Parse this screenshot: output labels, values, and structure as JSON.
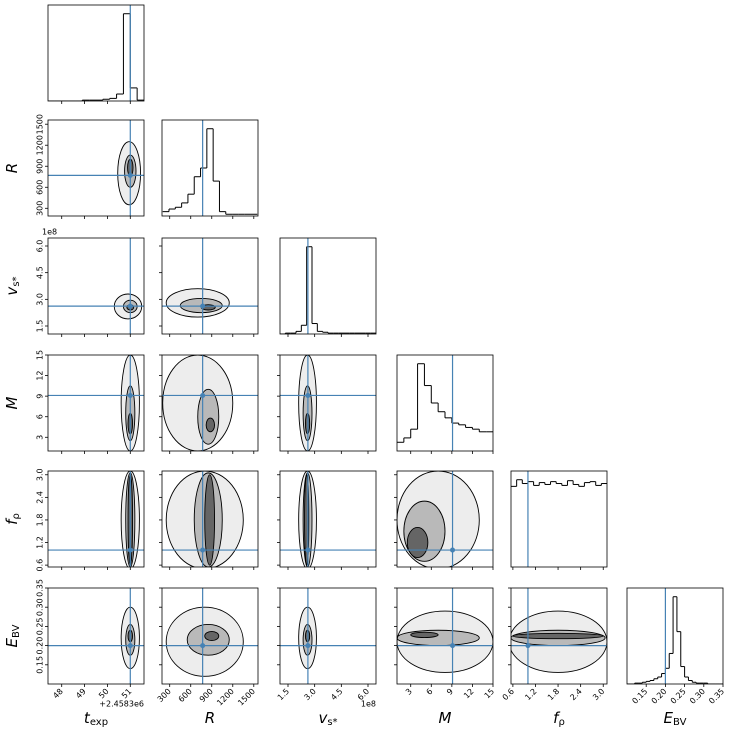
{
  "chart_data": {
    "type": "corner",
    "truth_color": "#4682b4",
    "parameters": [
      {
        "label": {
          "symbol": "t",
          "subscript": "exp"
        },
        "offset": "+2.4583e6",
        "lim": [
          47.4,
          51.6
        ],
        "ticks": [
          48,
          49,
          50,
          51
        ],
        "truth": 51.0,
        "bins": [
          47.4,
          47.7,
          48.0,
          48.3,
          48.6,
          48.9,
          49.2,
          49.5,
          49.8,
          50.1,
          50.4,
          50.7,
          51.0,
          51.3,
          51.6
        ],
        "counts": [
          0,
          0,
          0,
          0,
          0,
          1,
          1,
          1,
          2,
          3,
          8,
          100,
          15,
          1
        ]
      },
      {
        "label": {
          "symbol": "R"
        },
        "lim": [
          190,
          1560
        ],
        "ticks": [
          300,
          600,
          900,
          1200,
          1500
        ],
        "truth": 770,
        "bins": [
          200,
          290,
          380,
          470,
          560,
          650,
          740,
          830,
          920,
          1010,
          1100,
          1190,
          1280,
          1370,
          1460,
          1550
        ],
        "counts": [
          5,
          8,
          10,
          15,
          25,
          45,
          55,
          100,
          40,
          5,
          2,
          2,
          2,
          2,
          2
        ]
      },
      {
        "label": {
          "symbol": "v",
          "subscript": "s*"
        },
        "offset": "1e8",
        "lim": [
          1.05,
          6.45
        ],
        "ticks": [
          1.5,
          {
            "value": 3,
            "label": "3.0"
          },
          4.5,
          {
            "value": 6,
            "label": "6.0"
          }
        ],
        "truth": 2.62,
        "bins": [
          1.05,
          1.35,
          1.65,
          1.95,
          2.25,
          2.55,
          2.85,
          3.15,
          3.45,
          3.75,
          4.05,
          4.35,
          4.65,
          4.95,
          5.25,
          5.55,
          5.85,
          6.15,
          6.45
        ],
        "counts": [
          0,
          1,
          1,
          3,
          10,
          100,
          12,
          3,
          2,
          1,
          1,
          1,
          1,
          1,
          1,
          1,
          1,
          1
        ]
      },
      {
        "label": {
          "symbol": "M"
        },
        "lim": [
          1,
          15
        ],
        "ticks": [
          3,
          6,
          9,
          12,
          15
        ],
        "truth": 9.1,
        "bins": [
          1,
          2,
          3,
          4,
          5,
          6,
          7,
          8,
          9,
          10,
          11,
          12,
          13,
          14,
          15
        ],
        "counts": [
          10,
          15,
          25,
          100,
          75,
          55,
          45,
          38,
          32,
          30,
          27,
          25,
          22,
          22
        ]
      },
      {
        "label": {
          "symbol": "f",
          "subscript": "ρ"
        },
        "lim": [
          0.55,
          3.1
        ],
        "ticks": [
          0.6,
          1.2,
          1.8,
          2.4,
          {
            "value": 3,
            "label": "3.0"
          }
        ],
        "truth": 1.0,
        "bins": [
          0.55,
          0.7,
          0.85,
          1.0,
          1.15,
          1.3,
          1.45,
          1.6,
          1.75,
          1.9,
          2.05,
          2.2,
          2.35,
          2.5,
          2.65,
          2.8,
          2.95,
          3.1
        ],
        "counts": [
          85,
          92,
          88,
          90,
          86,
          89,
          87,
          90,
          88,
          86,
          91,
          87,
          85,
          89,
          90,
          86,
          88
        ]
      },
      {
        "label": {
          "symbol": "E",
          "subscript": "BV"
        },
        "lim": [
          0.1,
          0.35
        ],
        "ticks": [
          0.15,
          {
            "value": 0.2,
            "label": "0.20"
          },
          0.25,
          {
            "value": 0.3,
            "label": "0.30"
          },
          0.35
        ],
        "truth": 0.2,
        "bins": [
          0.1,
          0.11,
          0.12,
          0.13,
          0.14,
          0.15,
          0.16,
          0.17,
          0.18,
          0.19,
          0.2,
          0.21,
          0.22,
          0.23,
          0.24,
          0.25,
          0.26,
          0.27,
          0.28,
          0.29,
          0.3,
          0.31,
          0.32,
          0.33,
          0.34,
          0.35
        ],
        "counts": [
          0,
          0,
          1,
          1,
          2,
          3,
          4,
          6,
          8,
          12,
          18,
          35,
          100,
          60,
          20,
          8,
          4,
          2,
          1,
          1,
          1,
          0,
          0,
          0,
          0
        ]
      }
    ],
    "contours": [
      [],
      [
        [
          [
            50.95,
            800,
            0.5,
            450
          ],
          [
            51.0,
            830,
            0.25,
            230
          ],
          [
            51.0,
            880,
            0.12,
            120
          ]
        ]
      ],
      [
        [
          [
            50.9,
            2.6,
            0.6,
            0.7
          ],
          [
            51.0,
            2.6,
            0.3,
            0.35
          ],
          [
            51.0,
            2.55,
            0.15,
            0.15
          ]
        ],
        [
          [
            700,
            2.8,
            450,
            0.8
          ],
          [
            750,
            2.65,
            300,
            0.4
          ],
          [
            850,
            2.55,
            100,
            0.15
          ]
        ]
      ],
      [
        [
          [
            51.0,
            8,
            0.4,
            7
          ],
          [
            51.0,
            6.5,
            0.2,
            4
          ],
          [
            51.0,
            5,
            0.1,
            1.5
          ]
        ],
        [
          [
            700,
            8,
            500,
            7
          ],
          [
            850,
            6,
            150,
            4
          ],
          [
            880,
            4.8,
            60,
            1
          ]
        ],
        [
          [
            2.6,
            8,
            0.5,
            7
          ],
          [
            2.6,
            6.5,
            0.25,
            4
          ],
          [
            2.6,
            5,
            0.12,
            1.5
          ]
        ]
      ],
      [
        [
          [
            51.0,
            1.8,
            0.4,
            1.3
          ],
          [
            51.0,
            1.8,
            0.2,
            1.25
          ],
          [
            51.0,
            1.8,
            0.1,
            1.2
          ]
        ],
        [
          [
            800,
            1.8,
            550,
            1.3
          ],
          [
            850,
            1.8,
            200,
            1.25
          ],
          [
            870,
            1.8,
            70,
            1.2
          ]
        ],
        [
          [
            2.6,
            1.8,
            0.5,
            1.3
          ],
          [
            2.6,
            1.8,
            0.25,
            1.25
          ],
          [
            2.55,
            1.8,
            0.12,
            1.2
          ]
        ],
        [
          [
            7,
            1.8,
            6,
            1.3
          ],
          [
            5,
            1.5,
            3,
            0.8
          ],
          [
            4,
            1.2,
            1.5,
            0.4
          ]
        ]
      ],
      [
        [
          [
            51.0,
            0.22,
            0.4,
            0.08
          ],
          [
            51.0,
            0.215,
            0.2,
            0.04
          ],
          [
            51.0,
            0.225,
            0.1,
            0.015
          ]
        ],
        [
          [
            800,
            0.21,
            550,
            0.09
          ],
          [
            850,
            0.215,
            300,
            0.04
          ],
          [
            900,
            0.225,
            100,
            0.012
          ]
        ],
        [
          [
            2.6,
            0.22,
            0.5,
            0.08
          ],
          [
            2.6,
            0.215,
            0.25,
            0.04
          ],
          [
            2.6,
            0.225,
            0.12,
            0.015
          ]
        ],
        [
          [
            8,
            0.21,
            7,
            0.08
          ],
          [
            7,
            0.22,
            6,
            0.02
          ],
          [
            5,
            0.228,
            2,
            0.007
          ]
        ],
        [
          [
            1.8,
            0.21,
            1.3,
            0.08
          ],
          [
            1.8,
            0.22,
            1.25,
            0.02
          ],
          [
            1.8,
            0.225,
            1.2,
            0.007
          ]
        ]
      ]
    ]
  }
}
